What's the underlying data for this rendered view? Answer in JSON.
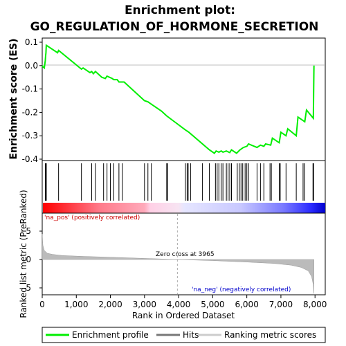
{
  "title_line1": "Enrichment plot:",
  "title_line2": "GO_REGULATION_OF_HORMONE_SECRETION",
  "top_ylabel": "Enrichment score (ES)",
  "bottom_ylabel": "Ranked list metric (PreRanked)",
  "xlabel": "Rank in Ordered Dataset",
  "pos_label": "'na_pos' (positively correlated)",
  "neg_label": "'na_neg' (negatively correlated)",
  "zero_cross_label": "Zero cross at 3965",
  "legend": {
    "enrichment_profile": "Enrichment profile",
    "hits": "Hits",
    "ranking_metric": "Ranking metric scores"
  },
  "colors": {
    "es_line": "#00ee00",
    "hits": "#000000",
    "pos_label": "#cc0000",
    "neg_label": "#0000cc",
    "metric_fill": "#bbbbbb"
  },
  "chart_data": [
    {
      "type": "line",
      "name": "enrichment-score",
      "ylim": [
        -0.4,
        0.1
      ],
      "yticks": [
        "0.1",
        "0.0",
        "-0.1",
        "-0.2",
        "-0.3",
        "-0.4"
      ],
      "ytick_values": [
        0.1,
        0.0,
        -0.1,
        -0.2,
        -0.3,
        -0.4
      ],
      "xlim": [
        0,
        8300
      ],
      "points": [
        [
          0,
          0.0
        ],
        [
          20,
          -0.005
        ],
        [
          60,
          -0.01
        ],
        [
          90,
          0.02
        ],
        [
          100,
          0.04
        ],
        [
          110,
          0.055
        ],
        [
          120,
          0.087
        ],
        [
          450,
          0.055
        ],
        [
          480,
          0.065
        ],
        [
          1150,
          -0.015
        ],
        [
          1200,
          -0.01
        ],
        [
          1400,
          -0.03
        ],
        [
          1450,
          -0.025
        ],
        [
          1500,
          -0.035
        ],
        [
          1560,
          -0.025
        ],
        [
          1750,
          -0.05
        ],
        [
          1850,
          -0.055
        ],
        [
          1900,
          -0.045
        ],
        [
          2050,
          -0.055
        ],
        [
          2100,
          -0.06
        ],
        [
          2200,
          -0.06
        ],
        [
          2250,
          -0.07
        ],
        [
          2400,
          -0.07
        ],
        [
          3000,
          -0.15
        ],
        [
          3100,
          -0.155
        ],
        [
          3200,
          -0.165
        ],
        [
          3500,
          -0.195
        ],
        [
          3650,
          -0.215
        ],
        [
          4200,
          -0.275
        ],
        [
          4300,
          -0.285
        ],
        [
          4900,
          -0.36
        ],
        [
          5050,
          -0.375
        ],
        [
          5100,
          -0.365
        ],
        [
          5180,
          -0.37
        ],
        [
          5250,
          -0.365
        ],
        [
          5300,
          -0.37
        ],
        [
          5400,
          -0.365
        ],
        [
          5500,
          -0.372
        ],
        [
          5550,
          -0.36
        ],
        [
          5700,
          -0.375
        ],
        [
          5800,
          -0.36
        ],
        [
          5850,
          -0.355
        ],
        [
          5900,
          -0.35
        ],
        [
          6000,
          -0.345
        ],
        [
          6050,
          -0.335
        ],
        [
          6300,
          -0.35
        ],
        [
          6400,
          -0.34
        ],
        [
          6500,
          -0.345
        ],
        [
          6550,
          -0.335
        ],
        [
          6700,
          -0.34
        ],
        [
          6750,
          -0.31
        ],
        [
          6950,
          -0.33
        ],
        [
          7000,
          -0.285
        ],
        [
          7150,
          -0.3
        ],
        [
          7200,
          -0.27
        ],
        [
          7450,
          -0.3
        ],
        [
          7500,
          -0.22
        ],
        [
          7700,
          -0.24
        ],
        [
          7750,
          -0.19
        ],
        [
          7950,
          -0.225
        ],
        [
          7960,
          -0.12
        ],
        [
          7970,
          0.0
        ]
      ]
    },
    {
      "type": "scatter",
      "name": "hits",
      "x": [
        90,
        110,
        120,
        480,
        1150,
        1450,
        1560,
        1800,
        1900,
        2000,
        2100,
        2250,
        2350,
        3000,
        3100,
        3200,
        3650,
        3680,
        4200,
        4250,
        4280,
        4350,
        4700,
        4900,
        5080,
        5130,
        5180,
        5250,
        5300,
        5400,
        5450,
        5500,
        5550,
        5720,
        5780,
        5830,
        5880,
        5950,
        6000,
        6050,
        6300,
        6400,
        6500,
        6680,
        6720,
        6950,
        6980,
        7150,
        7450,
        7650,
        7700,
        7940,
        7960
      ]
    },
    {
      "type": "area",
      "name": "ranked-list-metric",
      "ylim": [
        -6.5,
        6.5
      ],
      "yticks": [
        "5",
        "0",
        "-5"
      ],
      "ytick_values": [
        5,
        0,
        -5
      ],
      "zero_cross": 3965,
      "x": [
        0,
        20,
        60,
        150,
        300,
        600,
        1200,
        2000,
        3000,
        3965,
        5000,
        6000,
        6800,
        7300,
        7600,
        7800,
        7900,
        7950,
        7970
      ],
      "values": [
        4.5,
        2.5,
        1.6,
        1.1,
        0.9,
        0.7,
        0.55,
        0.4,
        0.2,
        0.0,
        -0.2,
        -0.45,
        -0.7,
        -1.0,
        -1.4,
        -2.0,
        -3.0,
        -4.5,
        -6.0
      ]
    }
  ],
  "xticks": [
    "0",
    "1,000",
    "2,000",
    "3,000",
    "4,000",
    "5,000",
    "6,000",
    "7,000",
    "8,000"
  ],
  "xtick_values": [
    0,
    1000,
    2000,
    3000,
    4000,
    5000,
    6000,
    7000,
    8000
  ]
}
